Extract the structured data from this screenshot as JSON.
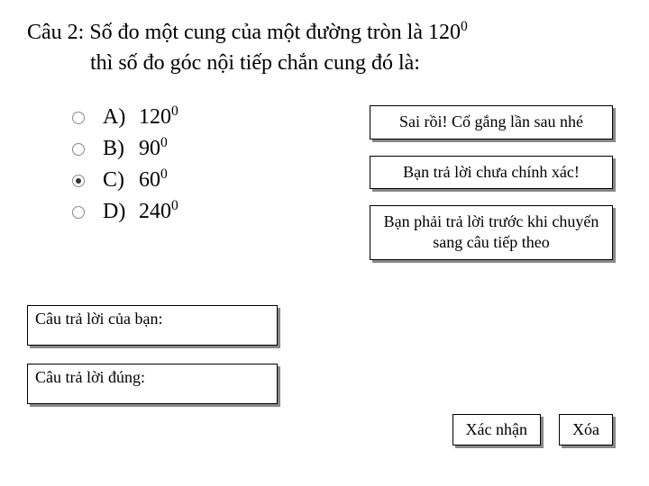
{
  "question": {
    "line1_prefix": "Câu 2: Số đo một cung của một đường tròn là 120",
    "line1_exp": "0",
    "line2": "thì số đo góc nội tiếp chắn cung đó là:"
  },
  "options": [
    {
      "label": "A)",
      "value": "120",
      "exp": "0",
      "selected": false
    },
    {
      "label": "B)",
      "value": "90",
      "exp": "0",
      "selected": false
    },
    {
      "label": "C)",
      "value": "60",
      "exp": "0",
      "selected": true
    },
    {
      "label": "D)",
      "value": "240",
      "exp": "0",
      "selected": false
    }
  ],
  "feedback": {
    "box1": "Sai rồi! Cố gắng lần sau nhé",
    "box2": "Bạn trả lời chưa chính xác!",
    "box3": "Bạn phải trả lời trước khi chuyển sang câu tiếp theo"
  },
  "answer_labels": {
    "your": "Câu trả lời của bạn:",
    "correct": "Câu trả lời đúng:"
  },
  "buttons": {
    "confirm": "Xác nhận",
    "clear": "Xóa"
  },
  "styling": {
    "font_family": "Times New Roman",
    "question_fontsize": 24,
    "option_fontsize": 24,
    "box_fontsize": 18,
    "text_color": "#000000",
    "background_color": "#ffffff",
    "box_border_color": "#000000",
    "box_shadow_color": "#888888",
    "radio_border_color": "#888888",
    "radio_fill_color": "#333333"
  }
}
